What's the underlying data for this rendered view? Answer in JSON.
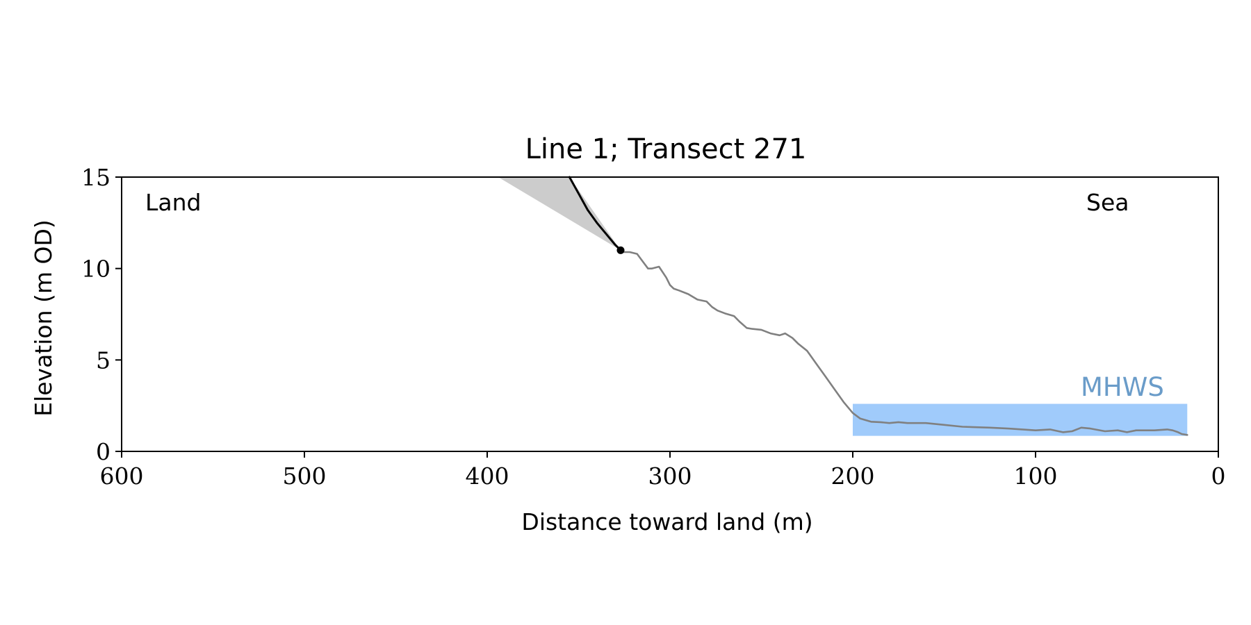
{
  "chart_data": {
    "type": "line",
    "title": "Line 1; Transect 271",
    "xlabel": "Distance toward land (m)",
    "ylabel": "Elevation (m OD)",
    "xlim": [
      600,
      0
    ],
    "ylim": [
      0,
      15
    ],
    "x_reversed": true,
    "xticks": [
      600,
      500,
      400,
      300,
      200,
      100,
      0
    ],
    "yticks": [
      0,
      5,
      10,
      15
    ],
    "grid": false,
    "annotations": {
      "land_label": "Land",
      "sea_label": "Sea",
      "mhws_label": "MHWS"
    },
    "mhws": {
      "elevation": 2.6,
      "x_start": 200,
      "x_end": 17,
      "color": "#a0cbfb",
      "label_color": "#6a9cc9"
    },
    "series": [
      {
        "role": "profile",
        "color": "#808080",
        "x": [
          327,
          322,
          318,
          315,
          312,
          310,
          306,
          302,
          300,
          298,
          295,
          290,
          285,
          280,
          277,
          274,
          270,
          265,
          262,
          258,
          255,
          250,
          245,
          240,
          237,
          233,
          230,
          225,
          220,
          215,
          210,
          205,
          200,
          196,
          190,
          185,
          180,
          175,
          170,
          160,
          150,
          140,
          125,
          115,
          100,
          92,
          85,
          80,
          75,
          70,
          62,
          55,
          50,
          45,
          35,
          28,
          25,
          22,
          20,
          17
        ],
        "y": [
          10.9,
          10.9,
          10.8,
          10.4,
          10.0,
          10.0,
          10.1,
          9.5,
          9.1,
          8.9,
          8.8,
          8.6,
          8.3,
          8.2,
          7.9,
          7.7,
          7.55,
          7.4,
          7.1,
          6.75,
          6.7,
          6.65,
          6.45,
          6.35,
          6.45,
          6.2,
          5.9,
          5.5,
          4.8,
          4.1,
          3.4,
          2.7,
          2.1,
          1.8,
          1.62,
          1.6,
          1.55,
          1.6,
          1.55,
          1.55,
          1.45,
          1.35,
          1.3,
          1.25,
          1.15,
          1.2,
          1.05,
          1.1,
          1.3,
          1.25,
          1.1,
          1.15,
          1.05,
          1.15,
          1.15,
          1.2,
          1.15,
          1.05,
          0.95,
          0.9
        ]
      },
      {
        "role": "cliff",
        "color": "#000000",
        "x": [
          355,
          350,
          345,
          340,
          335,
          330,
          327
        ],
        "y": [
          15.0,
          14.1,
          13.2,
          12.5,
          11.9,
          11.3,
          11.0
        ]
      }
    ],
    "wedge": {
      "color": "#cccccc",
      "points": [
        [
          394,
          15.0
        ],
        [
          355,
          15.0
        ],
        [
          327,
          11.0
        ]
      ]
    },
    "marker": {
      "x": 327,
      "y": 11.0,
      "color": "#000000"
    }
  }
}
